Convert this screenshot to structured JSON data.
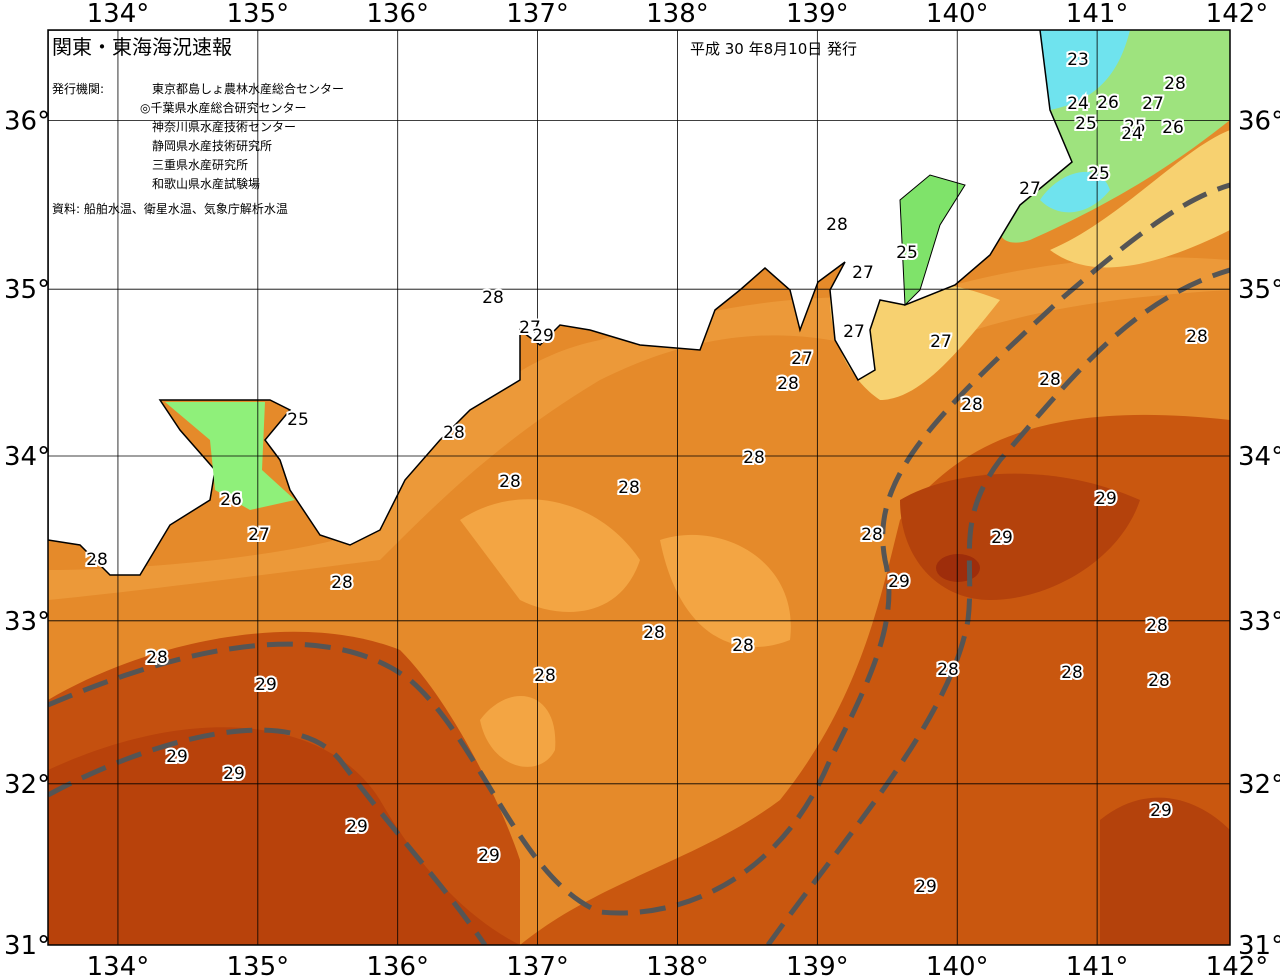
{
  "header": {
    "title": "関東・東海海況速報",
    "issued": "平成 30 年8月10日 発行"
  },
  "agencies": {
    "label": "発行機関:",
    "names": [
      "東京都島しょ農林水産総合センター",
      "◎千葉県水産総合研究センター",
      "神奈川県水産技術センター",
      "静岡県水産技術研究所",
      "三重県水産研究所",
      "和歌山県水産試験場"
    ]
  },
  "sources": "資料: 船舶水温、衛星水温、気象庁解析水温",
  "map": {
    "xlim": [
      133.5,
      141.95
    ],
    "ylim": [
      31,
      36.53
    ],
    "lon_ticks": [
      {
        "value": 134,
        "label": "134°"
      },
      {
        "value": 135,
        "label": "135°"
      },
      {
        "value": 136,
        "label": "136°"
      },
      {
        "value": 137,
        "label": "137°"
      },
      {
        "value": 138,
        "label": "138°"
      },
      {
        "value": 139,
        "label": "139°"
      },
      {
        "value": 140,
        "label": "140°"
      },
      {
        "value": 141,
        "label": "141°"
      },
      {
        "value": 142,
        "label": "142°"
      }
    ],
    "lat_ticks": [
      {
        "value": 31,
        "label": "31°"
      },
      {
        "value": 32,
        "label": "32°"
      },
      {
        "value": 33,
        "label": "33°"
      },
      {
        "value": 34,
        "label": "34°"
      },
      {
        "value": 35,
        "label": "35°"
      },
      {
        "value": 36,
        "label": "36°"
      }
    ],
    "contour_labels": [
      23,
      28,
      24,
      26,
      27,
      25,
      25,
      24,
      26,
      25,
      27,
      28,
      25,
      27,
      28,
      27,
      29,
      27,
      27,
      28,
      27,
      28,
      28,
      28,
      25,
      28,
      28,
      28,
      28,
      29,
      26,
      27,
      28,
      29,
      28,
      28,
      29,
      28,
      28,
      28,
      28,
      28,
      28,
      28,
      28,
      29,
      29,
      29,
      29,
      29,
      29,
      29
    ]
  }
}
